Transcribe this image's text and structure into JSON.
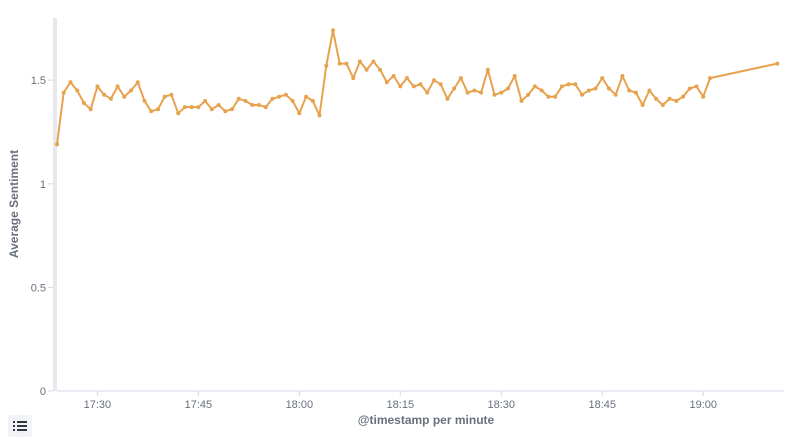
{
  "chart_data": {
    "type": "line",
    "xlabel": "@timestamp per minute",
    "ylabel": "Average Sentiment",
    "ylim": [
      0,
      1.8
    ],
    "y_ticks": [
      "0",
      "0.5",
      "1",
      "1.5"
    ],
    "x_ticks": [
      "17:30",
      "17:45",
      "18:00",
      "18:15",
      "18:30",
      "18:45",
      "19:00"
    ],
    "x_unit": "minute",
    "grid": false,
    "series": [
      {
        "color": "#e7a24e",
        "x": [
          "17:24",
          "17:25",
          "17:26",
          "17:27",
          "17:28",
          "17:29",
          "17:30",
          "17:31",
          "17:32",
          "17:33",
          "17:34",
          "17:35",
          "17:36",
          "17:37",
          "17:38",
          "17:39",
          "17:40",
          "17:41",
          "17:42",
          "17:43",
          "17:44",
          "17:45",
          "17:46",
          "17:47",
          "17:48",
          "17:49",
          "17:50",
          "17:51",
          "17:52",
          "17:53",
          "17:54",
          "17:55",
          "17:56",
          "17:57",
          "17:58",
          "17:59",
          "18:00",
          "18:01",
          "18:02",
          "18:03",
          "18:04",
          "18:05",
          "18:06",
          "18:07",
          "18:08",
          "18:09",
          "18:10",
          "18:11",
          "18:12",
          "18:13",
          "18:14",
          "18:15",
          "18:16",
          "18:17",
          "18:18",
          "18:19",
          "18:20",
          "18:21",
          "18:22",
          "18:23",
          "18:24",
          "18:25",
          "18:26",
          "18:27",
          "18:28",
          "18:29",
          "18:30",
          "18:31",
          "18:32",
          "18:33",
          "18:34",
          "18:35",
          "18:36",
          "18:37",
          "18:38",
          "18:39",
          "18:40",
          "18:41",
          "18:42",
          "18:43",
          "18:44",
          "18:45",
          "18:46",
          "18:47",
          "18:48",
          "18:49",
          "18:50",
          "18:51",
          "18:52",
          "18:53",
          "18:54",
          "18:55",
          "18:56",
          "18:57",
          "18:58",
          "18:59",
          "19:00",
          "19:01",
          "19:11"
        ],
        "values": [
          1.19,
          1.44,
          1.49,
          1.45,
          1.39,
          1.36,
          1.47,
          1.43,
          1.41,
          1.47,
          1.42,
          1.45,
          1.49,
          1.4,
          1.35,
          1.36,
          1.42,
          1.43,
          1.34,
          1.37,
          1.37,
          1.37,
          1.4,
          1.36,
          1.38,
          1.35,
          1.36,
          1.41,
          1.4,
          1.38,
          1.38,
          1.37,
          1.41,
          1.42,
          1.43,
          1.4,
          1.34,
          1.42,
          1.4,
          1.33,
          1.57,
          1.74,
          1.58,
          1.58,
          1.51,
          1.59,
          1.55,
          1.59,
          1.55,
          1.49,
          1.52,
          1.47,
          1.51,
          1.47,
          1.48,
          1.44,
          1.5,
          1.48,
          1.41,
          1.46,
          1.51,
          1.44,
          1.45,
          1.44,
          1.55,
          1.43,
          1.44,
          1.46,
          1.52,
          1.4,
          1.43,
          1.47,
          1.45,
          1.42,
          1.42,
          1.47,
          1.48,
          1.48,
          1.43,
          1.45,
          1.46,
          1.51,
          1.46,
          1.43,
          1.52,
          1.45,
          1.44,
          1.38,
          1.45,
          1.41,
          1.38,
          1.41,
          1.4,
          1.42,
          1.46,
          1.47,
          1.42,
          1.51,
          1.58
        ]
      }
    ]
  }
}
